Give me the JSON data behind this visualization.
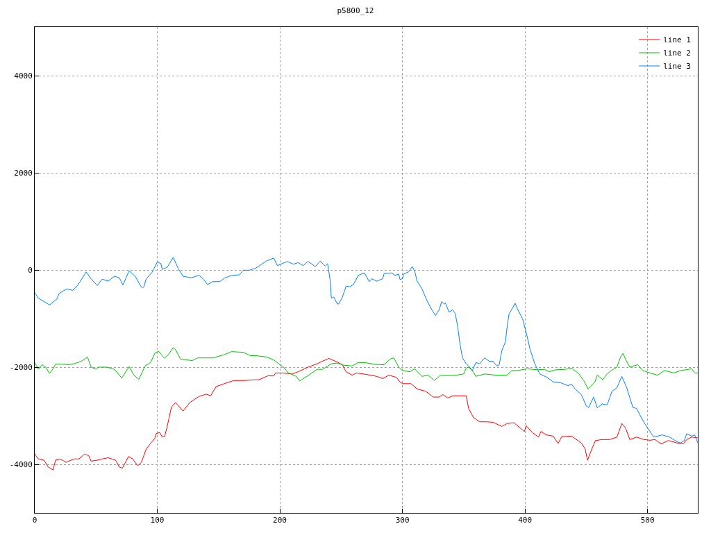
{
  "chart_data": {
    "type": "line",
    "title": "p5800_12",
    "xlim": [
      0,
      541
    ],
    "ylim": [
      -5000,
      5000
    ],
    "xticks": [
      0,
      100,
      200,
      300,
      400,
      500
    ],
    "yticks": [
      -4000,
      -2000,
      0,
      2000,
      4000
    ],
    "grid": true,
    "legend": "top right",
    "line_style": "solid",
    "marker": "none",
    "series": [
      {
        "name": "line 1",
        "color": "#ff0000",
        "x": [
          0,
          3,
          7.5,
          11,
          15,
          17,
          21,
          25.5,
          32,
          36,
          40.5,
          44,
          46,
          51,
          55,
          60,
          66,
          69,
          71.5,
          76.5,
          80,
          84,
          87,
          91,
          95,
          98,
          99,
          102,
          104,
          106,
          108,
          111.5,
          115,
          121,
          126.5,
          129,
          134,
          140,
          143.5,
          148,
          157,
          162.5,
          170,
          181,
          183,
          190,
          195,
          196.5,
          202,
          210,
          215,
          223,
          230.5,
          234.5,
          240,
          245.5,
          251,
          254,
          259,
          262.5,
          268,
          274,
          279,
          284,
          289,
          295,
          298,
          300,
          307,
          312,
          319,
          325,
          330,
          333,
          337,
          341,
          352,
          354,
          358,
          363,
          368.5,
          374,
          381,
          385.5,
          391,
          399.5,
          401,
          406,
          411,
          413,
          417.5,
          423,
          427,
          430,
          438,
          446,
          449,
          451,
          455,
          457.5,
          463.5,
          469,
          475,
          479,
          482,
          485.5,
          491,
          497,
          502,
          506,
          511,
          517,
          524,
          529,
          532,
          536,
          541
        ],
        "values": [
          -3785,
          -3890,
          -3915,
          -4055,
          -4115,
          -3915,
          -3890,
          -3960,
          -3890,
          -3890,
          -3795,
          -3820,
          -3935,
          -3915,
          -3890,
          -3865,
          -3915,
          -4055,
          -4080,
          -3840,
          -3890,
          -4030,
          -3960,
          -3680,
          -3560,
          -3465,
          -3370,
          -3345,
          -3440,
          -3425,
          -3230,
          -2825,
          -2730,
          -2905,
          -2730,
          -2685,
          -2605,
          -2555,
          -2590,
          -2400,
          -2320,
          -2275,
          -2275,
          -2260,
          -2260,
          -2180,
          -2180,
          -2120,
          -2120,
          -2140,
          -2095,
          -2000,
          -1930,
          -1880,
          -1820,
          -1880,
          -1950,
          -2095,
          -2165,
          -2120,
          -2140,
          -2165,
          -2190,
          -2235,
          -2165,
          -2210,
          -2305,
          -2340,
          -2340,
          -2450,
          -2495,
          -2615,
          -2615,
          -2565,
          -2635,
          -2590,
          -2590,
          -2850,
          -3040,
          -3125,
          -3125,
          -3135,
          -3220,
          -3160,
          -3145,
          -3325,
          -3205,
          -3345,
          -3440,
          -3325,
          -3395,
          -3420,
          -3570,
          -3430,
          -3420,
          -3560,
          -3680,
          -3915,
          -3655,
          -3510,
          -3490,
          -3490,
          -3440,
          -3160,
          -3250,
          -3490,
          -3440,
          -3490,
          -3505,
          -3490,
          -3580,
          -3510,
          -3560,
          -3580,
          -3490,
          -3440,
          -3455
        ]
      },
      {
        "name": "line 2",
        "color": "#00c000",
        "x": [
          0,
          3,
          6,
          9,
          12,
          14,
          17,
          23,
          28,
          32,
          38,
          43,
          46,
          50,
          52,
          59,
          65,
          71,
          77,
          81,
          85,
          90,
          94.5,
          98,
          101,
          106,
          109,
          113,
          115,
          119,
          128.5,
          133,
          145.5,
          155,
          160.5,
          170,
          176,
          181,
          189,
          195,
          199,
          203,
          207,
          213.5,
          216,
          223,
          230.5,
          235,
          242,
          246.5,
          252,
          259,
          264,
          269,
          278,
          285,
          290,
          293,
          297,
          300,
          306,
          310,
          316,
          321,
          326,
          331,
          336,
          344,
          350,
          352,
          354,
          357,
          360,
          367,
          376,
          385.5,
          389,
          394,
          402,
          410,
          416,
          419.5,
          425,
          433,
          438,
          444,
          448,
          451.5,
          457,
          459,
          463.5,
          467,
          470.5,
          475,
          478,
          480,
          482,
          485.5,
          492,
          496,
          502,
          508,
          514,
          521.5,
          527,
          536,
          538.5,
          541
        ],
        "values": [
          -1905,
          -2045,
          -1950,
          -2000,
          -2130,
          -2070,
          -1940,
          -1940,
          -1950,
          -1930,
          -1880,
          -1790,
          -2000,
          -2045,
          -2000,
          -2000,
          -2045,
          -2225,
          -1990,
          -2165,
          -2250,
          -1975,
          -1905,
          -1715,
          -1670,
          -1820,
          -1740,
          -1600,
          -1645,
          -1835,
          -1865,
          -1810,
          -1810,
          -1740,
          -1680,
          -1695,
          -1765,
          -1765,
          -1790,
          -1850,
          -1930,
          -2000,
          -2120,
          -2190,
          -2285,
          -2175,
          -2045,
          -2045,
          -1930,
          -1915,
          -1960,
          -1975,
          -1905,
          -1905,
          -1945,
          -1950,
          -1835,
          -1810,
          -2000,
          -2070,
          -2095,
          -2035,
          -2190,
          -2165,
          -2275,
          -2165,
          -2175,
          -2165,
          -2140,
          -2020,
          -2000,
          -2070,
          -2190,
          -2140,
          -2165,
          -2165,
          -2070,
          -2070,
          -2035,
          -2055,
          -2045,
          -2095,
          -2055,
          -2045,
          -2020,
          -2140,
          -2280,
          -2450,
          -2305,
          -2165,
          -2260,
          -2140,
          -2070,
          -2000,
          -1790,
          -1715,
          -1835,
          -2000,
          -1950,
          -2070,
          -2120,
          -2165,
          -2070,
          -2120,
          -2070,
          -2035,
          -2120,
          -2120
        ]
      },
      {
        "name": "line 3",
        "color": "#0080ff",
        "x": [
          0,
          3,
          12,
          18,
          20,
          26,
          31,
          35,
          42,
          46,
          51,
          55,
          60,
          65,
          69,
          72,
          77,
          82,
          87,
          89,
          91,
          96,
          100,
          103,
          104,
          108,
          111,
          113,
          117,
          121,
          128,
          134,
          138,
          141,
          145,
          151,
          155,
          161,
          167,
          170,
          175,
          180,
          183,
          189,
          195,
          198,
          206,
          211,
          215,
          219,
          223,
          229,
          233,
          237,
          239,
          241,
          242,
          244,
          247,
          248,
          251,
          254,
          257,
          260,
          264,
          269,
          273,
          275,
          279,
          284,
          285,
          291,
          294,
          297,
          298,
          300,
          301,
          305,
          308,
          310,
          312,
          316,
          320,
          324,
          327,
          330,
          332,
          334,
          335,
          338,
          341,
          343,
          345,
          347,
          349,
          352,
          354,
          357,
          360,
          363,
          367,
          371,
          374,
          377,
          379,
          381,
          384,
          385.5,
          387,
          392,
          394,
          398,
          401,
          404,
          408,
          412,
          418,
          423,
          429,
          435,
          438,
          441,
          446,
          450,
          452,
          456,
          459,
          463,
          467,
          471,
          475,
          479,
          483,
          488,
          491,
          497,
          502,
          505,
          512,
          518,
          524,
          527,
          530,
          532,
          536,
          538.5,
          541
        ],
        "values": [
          -463,
          -580,
          -720,
          -600,
          -480,
          -390,
          -420,
          -320,
          -40,
          -180,
          -320,
          -190,
          -230,
          -130,
          -160,
          -310,
          -15,
          -130,
          -355,
          -355,
          -180,
          -40,
          165,
          130,
          10,
          55,
          175,
          260,
          35,
          -130,
          -160,
          -110,
          -200,
          -300,
          -240,
          -240,
          -165,
          -110,
          -100,
          -5,
          -5,
          35,
          80,
          185,
          245,
          90,
          175,
          120,
          150,
          90,
          175,
          70,
          185,
          80,
          130,
          -205,
          -580,
          -560,
          -700,
          -700,
          -560,
          -335,
          -345,
          -300,
          -110,
          -60,
          -240,
          -180,
          -230,
          -180,
          -75,
          -60,
          -110,
          -85,
          -195,
          -180,
          -85,
          -40,
          70,
          -25,
          -230,
          -390,
          -630,
          -820,
          -935,
          -820,
          -650,
          -700,
          -680,
          -865,
          -820,
          -890,
          -1150,
          -1530,
          -1810,
          -1930,
          -1975,
          -2070,
          -1905,
          -1930,
          -1810,
          -1880,
          -1880,
          -1975,
          -1950,
          -1670,
          -1480,
          -1150,
          -910,
          -685,
          -810,
          -1005,
          -1290,
          -1620,
          -1930,
          -2140,
          -2210,
          -2305,
          -2320,
          -2380,
          -2355,
          -2450,
          -2565,
          -2800,
          -2830,
          -2615,
          -2840,
          -2755,
          -2780,
          -2495,
          -2425,
          -2190,
          -2425,
          -2830,
          -2850,
          -3135,
          -3325,
          -3440,
          -3395,
          -3440,
          -3535,
          -3560,
          -3510,
          -3370,
          -3420,
          -3395,
          -3560
        ]
      }
    ]
  }
}
